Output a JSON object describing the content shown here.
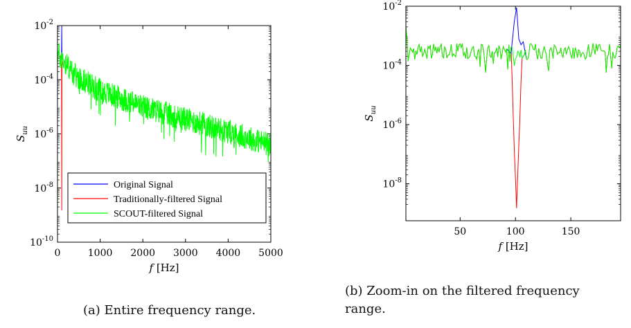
{
  "chart_data": [
    {
      "id": "a",
      "type": "line",
      "yscale": "log",
      "xlim": [
        0,
        5000
      ],
      "ylim_exp": [
        -10,
        -2
      ],
      "xticks": [
        0,
        1000,
        2000,
        3000,
        4000,
        5000
      ],
      "xtick_labels": [
        "0",
        "1000",
        "2000",
        "3000",
        "4000",
        "5000"
      ],
      "ytick_exps": [
        -10,
        -8,
        -6,
        -4,
        -2
      ],
      "xlabel": {
        "var": "f",
        "unit": " [Hz]"
      },
      "ylabel": {
        "base": "S",
        "sub": "uu"
      },
      "legend_position": "lower-center",
      "series": [
        {
          "name": "Original Signal",
          "color": "#0000ff",
          "description_points": {
            "x": [
              0,
              100,
              100,
              101,
              5000
            ],
            "peak_at_100": 0.01
          }
        },
        {
          "name": "Traditionally-filtered Signal",
          "color": "#ff0000",
          "description_points": {
            "notch_at_100": 1.5e-09
          }
        },
        {
          "name": "SCOUT-filtered Signal",
          "color": "#00ff00",
          "description_points": {
            "x": [
              0,
              400,
              1000,
              2000,
              3000,
              4000,
              5000
            ],
            "y": [
              0.001,
              0.00015,
              4e-05,
              1e-05,
              3.5e-06,
              1.2e-06,
              4e-07
            ]
          }
        }
      ],
      "caption": "(a) Entire frequency range."
    },
    {
      "id": "b",
      "type": "line",
      "yscale": "log",
      "xlim": [
        1,
        195
      ],
      "ylim_exp": [
        -9.25,
        -2
      ],
      "xticks": [
        50,
        100,
        150
      ],
      "xtick_labels": [
        "50",
        "100",
        "150"
      ],
      "ytick_exps": [
        -8,
        -6,
        -4,
        -2
      ],
      "xlabel": {
        "var": "f",
        "unit": " [Hz]"
      },
      "ylabel": {
        "base": "S",
        "sub": "uu"
      },
      "series": [
        {
          "name": "Original Signal",
          "color": "#0000ff",
          "peak": {
            "x": 101,
            "y": 0.009
          }
        },
        {
          "name": "Traditionally-filtered Signal",
          "color": "#ff0000",
          "notch": {
            "x": 101,
            "y": 1.5e-09
          }
        },
        {
          "name": "SCOUT-filtered Signal",
          "color": "#00ff00",
          "baseline": 0.0003
        }
      ],
      "caption_lines": [
        "(b) Zoom-in on the filtered frequency",
        "range."
      ]
    }
  ]
}
